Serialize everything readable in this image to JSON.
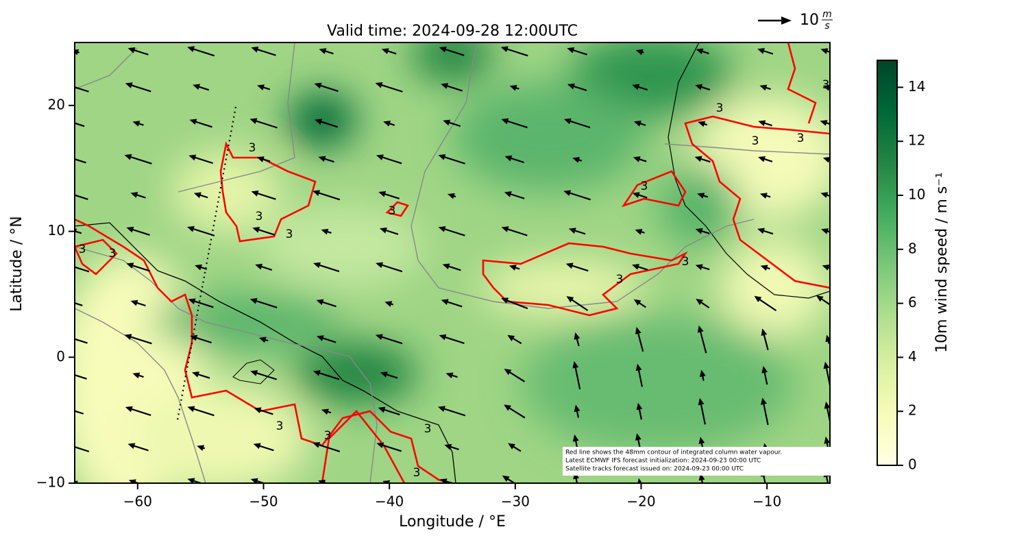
{
  "chart_data": {
    "type": "map",
    "title": "Valid time: 2024-09-28 12:00UTC",
    "xlabel": "Longitude / °E",
    "ylabel": "Latitude / °N",
    "xlim": [
      -65,
      -5
    ],
    "ylim": [
      -10,
      25
    ],
    "xticks": [
      {
        "value": -60,
        "label": "−60"
      },
      {
        "value": -50,
        "label": "−50"
      },
      {
        "value": -40,
        "label": "−40"
      },
      {
        "value": -30,
        "label": "−30"
      },
      {
        "value": -20,
        "label": "−20"
      },
      {
        "value": -10,
        "label": "−10"
      }
    ],
    "yticks": [
      {
        "value": -10,
        "label": "−10"
      },
      0,
      10,
      20
    ],
    "colorbar": {
      "label": "10m wind speed / m s⁻¹",
      "lim": [
        0,
        15
      ],
      "ticks": [
        0,
        2,
        4,
        6,
        8,
        10,
        12,
        14
      ],
      "colors": [
        "#ffffe5",
        "#f7fcb9",
        "#d9f0a3",
        "#addd8e",
        "#78c679",
        "#41ab5d",
        "#238443",
        "#006837",
        "#004529"
      ]
    },
    "contour_label": "3",
    "contour_color": "#ff0000",
    "quiver_key": {
      "value": 10,
      "numerator": "m",
      "denominator": "s"
    },
    "annotation": [
      "Red line shows the 48mm contour of integrated column water vapour.",
      "Latest ECMWF IFS forecast initialization: 2024-09-23 00:00 UTC",
      "Satellite tracks forecast issued on: 2024-09-23 00:00 UTC"
    ]
  }
}
